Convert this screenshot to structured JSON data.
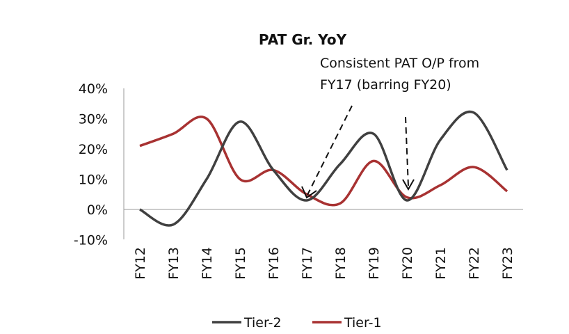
{
  "chart_data": {
    "type": "line",
    "title": "PAT Gr. YoY",
    "xlabel": "",
    "ylabel": "",
    "categories": [
      "FY12",
      "FY13",
      "FY14",
      "FY15",
      "FY16",
      "FY17",
      "FY18",
      "FY19",
      "FY20",
      "FY21",
      "FY22",
      "FY23"
    ],
    "y_ticks": [
      "40%",
      "30%",
      "20%",
      "10%",
      "0%",
      "-10%"
    ],
    "y_tick_values": [
      40,
      30,
      20,
      10,
      0,
      -10
    ],
    "ylim": [
      -10,
      40
    ],
    "grid": false,
    "legend_position": "bottom",
    "series": [
      {
        "name": "Tier-2",
        "color": "#404040",
        "values": [
          0,
          -5,
          10,
          29,
          13,
          3,
          15,
          25,
          3,
          23,
          32,
          13
        ]
      },
      {
        "name": "Tier-1",
        "color": "#a83232",
        "values": [
          21,
          25,
          30,
          10,
          13,
          5,
          2,
          16,
          4,
          8,
          14,
          6
        ]
      }
    ],
    "annotation": {
      "line1": "Consistent PAT O/P from",
      "line2": "FY17 (barring FY20)"
    }
  }
}
